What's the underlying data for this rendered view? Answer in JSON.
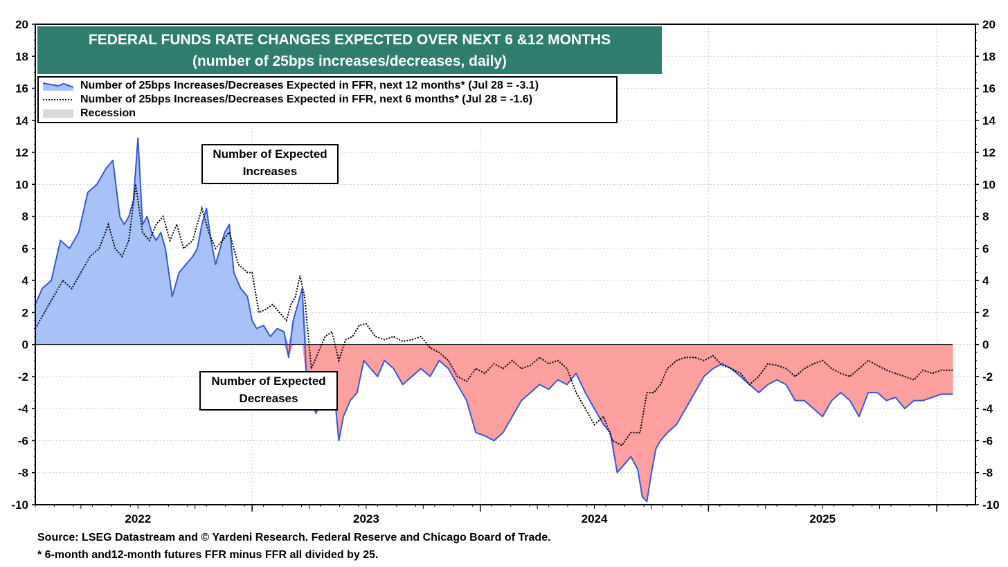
{
  "title_line1": "FEDERAL FUNDS RATE CHANGES EXPECTED OVER NEXT 6 &12 MONTHS",
  "title_line2": "(number of 25bps increases/decreases, daily)",
  "legend": {
    "series12": "Number of 25bps Increases/Decreases Expected in FFR, next 12 months* (Jul 28 = -3.1)",
    "series6": "Number of 25bps Increases/Decreases Expected in FFR, next 6 months* (Jul 28 = -1.6)",
    "recession": "Recession"
  },
  "annotations": {
    "increases_line1": "Number of Expected",
    "increases_line2": "Increases",
    "decreases_line1": "Number of Expected",
    "decreases_line2": "Decreases"
  },
  "footnotes": {
    "source": "Source: LSEG Datastream and © Yardeni Research. Federal Reserve and Chicago Board of Trade.",
    "note": "* 6-month and12-month futures FFR minus FFR all divided by 25."
  },
  "colors": {
    "title_bg": "#2e7d6e",
    "positive_fill": "#a6c2f7",
    "negative_fill": "#fb9f9f",
    "line12": "#3a56d4",
    "line6": "#000000",
    "recession": "#d9d9d9"
  },
  "chart_data": {
    "type": "area",
    "title": "FEDERAL FUNDS RATE CHANGES EXPECTED OVER NEXT 6 &12 MONTHS",
    "subtitle": "(number of 25bps increases/decreases, daily)",
    "ylim": [
      -10,
      20
    ],
    "yticks": [
      -10,
      -8,
      -6,
      -4,
      -2,
      0,
      2,
      4,
      6,
      8,
      10,
      12,
      14,
      16,
      18,
      20
    ],
    "xlim": [
      2021.55,
      2025.67
    ],
    "year_labels": [
      {
        "label": "2022",
        "x": 2022.0
      },
      {
        "label": "2023",
        "x": 2023.0
      },
      {
        "label": "2024",
        "x": 2024.0
      },
      {
        "label": "2025",
        "x": 2025.0
      }
    ],
    "year_boundaries": [
      2022.5,
      2023.5,
      2024.5,
      2025.5
    ],
    "gridlines": true,
    "series": [
      {
        "name": "Number of 25bps Increases/Decreases Expected in FFR, next 12 months",
        "style": "filled-line",
        "x": [
          2021.55,
          2021.58,
          2021.62,
          2021.66,
          2021.7,
          2021.74,
          2021.78,
          2021.82,
          2021.86,
          2021.89,
          2021.92,
          2021.94,
          2021.96,
          2021.98,
          2022.0,
          2022.02,
          2022.04,
          2022.06,
          2022.08,
          2022.1,
          2022.12,
          2022.15,
          2022.18,
          2022.21,
          2022.24,
          2022.26,
          2022.28,
          2022.3,
          2022.32,
          2022.34,
          2022.36,
          2022.38,
          2022.4,
          2022.42,
          2022.45,
          2022.48,
          2022.5,
          2022.52,
          2022.55,
          2022.58,
          2022.61,
          2022.64,
          2022.66,
          2022.68,
          2022.7,
          2022.72,
          2022.74,
          2022.76,
          2022.78,
          2022.8,
          2022.83,
          2022.86,
          2022.88,
          2022.9,
          2022.93,
          2022.96,
          2022.99,
          2023.02,
          2023.05,
          2023.08,
          2023.12,
          2023.16,
          2023.2,
          2023.24,
          2023.28,
          2023.32,
          2023.36,
          2023.4,
          2023.44,
          2023.48,
          2023.52,
          2023.56,
          2023.6,
          2023.64,
          2023.68,
          2023.72,
          2023.76,
          2023.8,
          2023.84,
          2023.88,
          2023.92,
          2023.96,
          2024.0,
          2024.04,
          2024.07,
          2024.1,
          2024.13,
          2024.16,
          2024.19,
          2024.21,
          2024.23,
          2024.25,
          2024.27,
          2024.29,
          2024.32,
          2024.36,
          2024.4,
          2024.44,
          2024.48,
          2024.52,
          2024.56,
          2024.6,
          2024.64,
          2024.68,
          2024.72,
          2024.76,
          2024.8,
          2024.84,
          2024.88,
          2024.92,
          2024.96,
          2025.0,
          2025.04,
          2025.08,
          2025.12,
          2025.16,
          2025.2,
          2025.24,
          2025.28,
          2025.32,
          2025.36,
          2025.4,
          2025.44,
          2025.48,
          2025.52,
          2025.57
        ],
        "values": [
          2.5,
          3.5,
          4.0,
          6.5,
          6.0,
          7.0,
          9.5,
          10.0,
          11.0,
          11.5,
          8.0,
          7.5,
          8.0,
          9.0,
          12.9,
          7.5,
          8.0,
          7.0,
          6.5,
          7.0,
          6.0,
          3.0,
          4.5,
          5.0,
          5.5,
          6.0,
          7.5,
          8.5,
          6.5,
          5.0,
          6.0,
          7.0,
          7.5,
          4.5,
          3.5,
          3.0,
          1.5,
          1.0,
          1.2,
          0.5,
          1.0,
          0.8,
          -0.8,
          1.5,
          2.5,
          3.5,
          -2.5,
          -3.5,
          -4.3,
          -3.5,
          -2.0,
          -3.0,
          -6.0,
          -4.5,
          -3.5,
          -3.0,
          -1.0,
          -1.5,
          -2.0,
          -1.0,
          -1.5,
          -2.5,
          -2.0,
          -1.5,
          -2.0,
          -1.0,
          -1.5,
          -2.5,
          -3.5,
          -5.5,
          -5.7,
          -6.0,
          -5.5,
          -4.5,
          -3.5,
          -3.0,
          -2.5,
          -2.8,
          -2.2,
          -2.5,
          -1.8,
          -3.0,
          -4.0,
          -5.0,
          -5.5,
          -8.0,
          -7.5,
          -7.0,
          -7.8,
          -9.5,
          -9.8,
          -8.0,
          -6.5,
          -6.0,
          -5.5,
          -5.0,
          -4.0,
          -3.0,
          -2.0,
          -1.5,
          -1.2,
          -1.5,
          -2.0,
          -2.5,
          -3.0,
          -2.5,
          -2.2,
          -2.5,
          -3.5,
          -3.5,
          -4.0,
          -4.5,
          -3.5,
          -3.0,
          -3.5,
          -4.5,
          -3.0,
          -3.0,
          -3.5,
          -3.3,
          -4.0,
          -3.5,
          -3.5,
          -3.3,
          -3.1,
          -3.1
        ]
      },
      {
        "name": "Number of 25bps Increases/Decreases Expected in FFR, next 6 months",
        "style": "dotted-line",
        "x": [
          2021.55,
          2021.59,
          2021.63,
          2021.67,
          2021.71,
          2021.75,
          2021.79,
          2021.83,
          2021.87,
          2021.9,
          2021.93,
          2021.96,
          2021.99,
          2022.02,
          2022.05,
          2022.08,
          2022.11,
          2022.14,
          2022.17,
          2022.2,
          2022.24,
          2022.28,
          2022.31,
          2022.34,
          2022.37,
          2022.4,
          2022.44,
          2022.48,
          2022.5,
          2022.53,
          2022.56,
          2022.59,
          2022.62,
          2022.65,
          2022.67,
          2022.69,
          2022.71,
          2022.73,
          2022.76,
          2022.79,
          2022.82,
          2022.85,
          2022.88,
          2022.91,
          2022.94,
          2022.97,
          2023.0,
          2023.04,
          2023.08,
          2023.12,
          2023.16,
          2023.2,
          2023.24,
          2023.28,
          2023.32,
          2023.36,
          2023.4,
          2023.44,
          2023.48,
          2023.52,
          2023.56,
          2023.6,
          2023.64,
          2023.68,
          2023.72,
          2023.76,
          2023.8,
          2023.84,
          2023.88,
          2023.92,
          2023.96,
          2024.0,
          2024.04,
          2024.08,
          2024.12,
          2024.16,
          2024.2,
          2024.23,
          2024.26,
          2024.29,
          2024.32,
          2024.36,
          2024.4,
          2024.44,
          2024.48,
          2024.52,
          2024.56,
          2024.6,
          2024.64,
          2024.68,
          2024.72,
          2024.76,
          2024.8,
          2024.84,
          2024.88,
          2024.92,
          2024.96,
          2025.0,
          2025.04,
          2025.08,
          2025.12,
          2025.16,
          2025.2,
          2025.24,
          2025.28,
          2025.32,
          2025.36,
          2025.4,
          2025.44,
          2025.48,
          2025.52,
          2025.57
        ],
        "values": [
          1.0,
          2.0,
          3.0,
          4.0,
          3.5,
          4.5,
          5.5,
          6.0,
          7.5,
          6.0,
          5.5,
          6.5,
          10.0,
          7.0,
          6.5,
          7.5,
          8.0,
          6.5,
          7.5,
          6.0,
          6.5,
          8.5,
          7.0,
          6.0,
          6.5,
          7.0,
          5.0,
          4.5,
          4.5,
          2.0,
          2.2,
          2.5,
          2.0,
          1.5,
          2.5,
          3.0,
          4.3,
          3.0,
          -1.5,
          -0.5,
          0.5,
          0.8,
          -1.0,
          0.3,
          0.5,
          1.2,
          1.3,
          0.5,
          0.3,
          0.5,
          0.2,
          0.3,
          0.5,
          -0.2,
          -0.5,
          -1.0,
          -2.0,
          -2.3,
          -1.5,
          -1.8,
          -1.2,
          -1.5,
          -1.0,
          -1.5,
          -1.3,
          -0.8,
          -1.2,
          -1.0,
          -1.5,
          -3.0,
          -4.0,
          -5.0,
          -4.5,
          -6.0,
          -6.3,
          -5.5,
          -5.5,
          -3.0,
          -3.0,
          -2.5,
          -1.5,
          -1.0,
          -0.8,
          -0.8,
          -1.0,
          -0.7,
          -1.3,
          -1.5,
          -1.8,
          -2.5,
          -2.0,
          -1.2,
          -1.3,
          -1.5,
          -2.0,
          -1.5,
          -1.2,
          -1.0,
          -1.5,
          -1.8,
          -2.0,
          -1.5,
          -1.0,
          -1.3,
          -1.6,
          -1.8,
          -2.0,
          -2.2,
          -1.6,
          -1.8,
          -1.6,
          -1.6
        ]
      }
    ],
    "xlabel": "",
    "ylabel": ""
  }
}
